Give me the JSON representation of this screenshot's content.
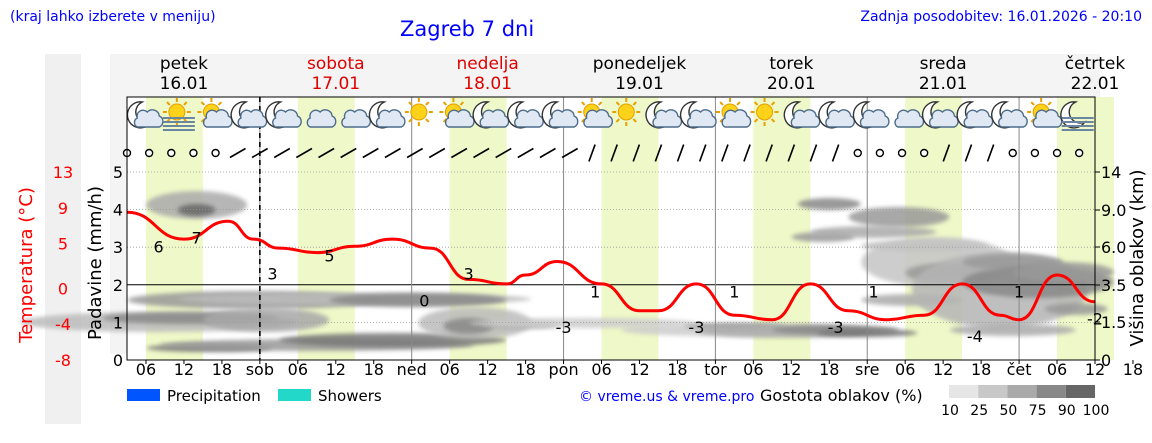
{
  "header": {
    "note": "(kraj lahko izberete v meniju)",
    "title": "Zagreb 7 dni",
    "updated": "Zadnja posodobitev: 16.01.2026 - 20:10"
  },
  "days": [
    {
      "name": "petek",
      "date": "16.01",
      "weekend": false
    },
    {
      "name": "sobota",
      "date": "17.01",
      "weekend": true
    },
    {
      "name": "nedelja",
      "date": "18.01",
      "weekend": true
    },
    {
      "name": "ponedeljek",
      "date": "19.01",
      "weekend": false
    },
    {
      "name": "torek",
      "date": "20.01",
      "weekend": false
    },
    {
      "name": "sreda",
      "date": "21.01",
      "weekend": false
    },
    {
      "name": "četrtek",
      "date": "22.01",
      "weekend": false
    }
  ],
  "x_tick_labels": [
    "06",
    "12",
    "18",
    "sob",
    "06",
    "12",
    "18",
    "ned",
    "06",
    "12",
    "18",
    "pon",
    "06",
    "12",
    "18",
    "tor",
    "06",
    "12",
    "18",
    "sre",
    "06",
    "12",
    "18",
    "čet",
    "06",
    "12",
    "18"
  ],
  "weather_icons": [
    "moon-cloud-icon",
    "sun-fog-icon",
    "sun-cloud-icon",
    "moon-cloud-icon",
    "moon-cloud-icon",
    "cloud-icon",
    "cloud-icon",
    "moon-cloud-icon",
    "sun-icon",
    "sun-cloud-icon",
    "moon-cloud-icon",
    "moon-cloud-icon",
    "moon-cloud-icon",
    "sun-cloud-icon",
    "sun-icon",
    "moon-cloud-icon",
    "moon-cloud-icon",
    "sun-cloud-icon",
    "sun-icon",
    "moon-cloud-icon",
    "moon-cloud-icon",
    "moon-cloud-icon",
    "cloud-icon",
    "moon-cloud-icon",
    "moon-cloud-icon",
    "moon-cloud-icon",
    "sun-cloud-icon",
    "moon-fog-icon"
  ],
  "legend": {
    "precipitation": "Precipitation",
    "showers": "Showers",
    "precipitation_color": "#0055ff",
    "showers_color": "#22d8c8",
    "credit": "© vreme.us & vreme.pro",
    "cloud_label": "Gostota oblakov (%)",
    "cloud_levels": [
      "10",
      "25",
      "50",
      "75",
      "90",
      "100"
    ]
  },
  "chart_data": {
    "type": "line",
    "title": "Zagreb 7 dni",
    "x_unit": "hour",
    "x_range": [
      0,
      153
    ],
    "now_marker": 21,
    "temperature": {
      "label": "Temperatura (°C)",
      "color": "#ff0000",
      "ylim": [
        -8,
        13
      ],
      "ticks": [
        13,
        9,
        5,
        0,
        -4,
        -8
      ],
      "x": [
        0,
        9,
        16,
        20,
        24,
        30,
        36,
        42,
        48,
        54,
        60,
        63,
        68,
        75,
        81,
        84,
        90,
        96,
        102,
        108,
        114,
        120,
        126,
        132,
        138,
        141,
        147,
        153
      ],
      "y": [
        8.5,
        5.5,
        7.5,
        5.5,
        4.5,
        4.0,
        4.7,
        5.5,
        4.5,
        1.0,
        0.5,
        1.5,
        3.0,
        0.5,
        -2.5,
        -2.5,
        0.5,
        -3.0,
        -3.5,
        0.5,
        -2.5,
        -3.5,
        -3.0,
        0.5,
        -3.0,
        -3.5,
        1.5,
        -1.5
      ],
      "labels": [
        {
          "x": 5,
          "value": "6"
        },
        {
          "x": 11,
          "value": "7"
        },
        {
          "x": 23,
          "value": "3"
        },
        {
          "x": 32,
          "value": "5"
        },
        {
          "x": 47,
          "value": "0"
        },
        {
          "x": 54,
          "value": "3"
        },
        {
          "x": 69,
          "value": "-3"
        },
        {
          "x": 74,
          "value": "1"
        },
        {
          "x": 90,
          "value": "-3"
        },
        {
          "x": 96,
          "value": "1"
        },
        {
          "x": 112,
          "value": "-3"
        },
        {
          "x": 118,
          "value": "1"
        },
        {
          "x": 134,
          "value": "-4"
        },
        {
          "x": 141,
          "value": "1"
        },
        {
          "x": 153,
          "value": "-2"
        }
      ]
    },
    "precipitation": {
      "label": "Padavine (mm/h)",
      "ylim": [
        0,
        5
      ],
      "ticks": [
        0,
        1,
        2,
        3,
        4,
        5
      ]
    },
    "cloud_height": {
      "label": "Višina oblakov (km)",
      "ticks": [
        "14",
        "9.0",
        "6.0",
        "3.5",
        "1.5",
        "0"
      ]
    }
  }
}
